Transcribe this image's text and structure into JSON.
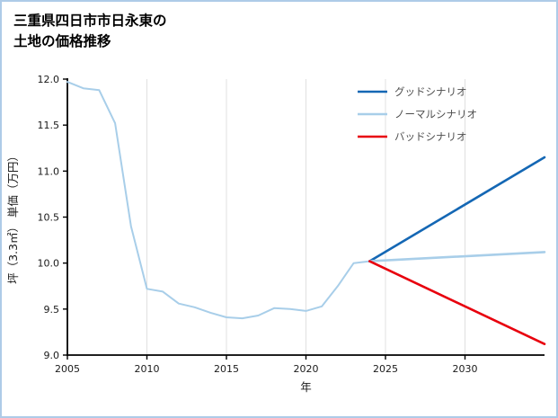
{
  "page": {
    "border_color": "#aecbe8",
    "background": "#ffffff"
  },
  "title": {
    "line1": "三重県四日市市日永東の",
    "line2": "土地の価格推移"
  },
  "chart_data": {
    "type": "line",
    "title": "三重県四日市市日永東の土地の価格推移",
    "xlabel": "年",
    "ylabel": "坪（3.3㎡） 単価（万円）",
    "xlim": [
      2005,
      2035
    ],
    "ylim": [
      9.0,
      12.0
    ],
    "xtick_labels": [
      "2005",
      "2010",
      "2015",
      "2020",
      "2025",
      "2030"
    ],
    "ytick_labels": [
      "9.0",
      "9.5",
      "10.0",
      "10.5",
      "11.0",
      "11.5",
      "12.0"
    ],
    "grid": {
      "vertical": true,
      "color": "#e0e0e0"
    },
    "legend": {
      "position": "upper-right"
    },
    "series": [
      {
        "key": "history",
        "name": "",
        "color": "#a8cee9",
        "width": 2,
        "in_legend": false,
        "x": [
          2005,
          2006,
          2007,
          2008,
          2009,
          2010,
          2011,
          2012,
          2013,
          2014,
          2015,
          2016,
          2017,
          2018,
          2019,
          2020,
          2021,
          2022,
          2023,
          2024
        ],
        "values": [
          11.97,
          11.9,
          11.88,
          11.52,
          10.4,
          9.72,
          9.69,
          9.56,
          9.52,
          9.46,
          9.41,
          9.4,
          9.43,
          9.51,
          9.5,
          9.48,
          9.53,
          9.75,
          10.0,
          10.02
        ]
      },
      {
        "key": "good-scenario",
        "name": "グッドシナリオ",
        "color": "#1467b4",
        "width": 2.6,
        "in_legend": true,
        "x": [
          2024,
          2035
        ],
        "values": [
          10.02,
          11.15
        ]
      },
      {
        "key": "normal-scenario",
        "name": "ノーマルシナリオ",
        "color": "#a8cee9",
        "width": 2.6,
        "in_legend": true,
        "x": [
          2024,
          2035
        ],
        "values": [
          10.02,
          10.12
        ]
      },
      {
        "key": "bad-scenario",
        "name": "バッドシナリオ",
        "color": "#e8000d",
        "width": 2.6,
        "in_legend": true,
        "x": [
          2024,
          2035
        ],
        "values": [
          10.02,
          9.12
        ]
      }
    ]
  }
}
